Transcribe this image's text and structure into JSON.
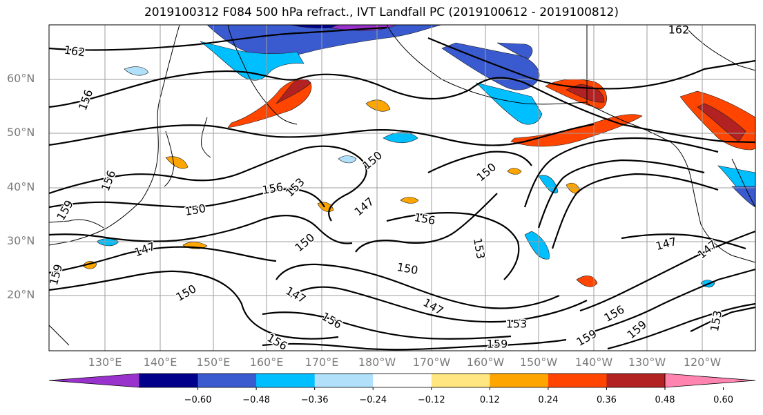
{
  "title": "2019100312 F084 500 hPa refract., IVT Landfall PC (2019100612 - 2019100812)",
  "lat_labels": [
    "60°N",
    "50°N",
    "40°N",
    "30°N",
    "20°N"
  ],
  "lon_labels": [
    "130°E",
    "140°E",
    "150°E",
    "160°E",
    "170°E",
    "180°W",
    "170°W",
    "160°W",
    "150°W",
    "140°W",
    "130°W",
    "120°W"
  ],
  "contour_labels": [
    "162",
    "162",
    "156",
    "159",
    "156",
    "156",
    "150",
    "153",
    "150",
    "147",
    "150",
    "156",
    "153",
    "150",
    "147",
    "150",
    "147",
    "156",
    "147",
    "156",
    "159",
    "156",
    "153",
    "159",
    "150",
    "147",
    "147",
    "159",
    "153",
    "159"
  ],
  "colorbar": {
    "tick_labels": [
      "−0.60",
      "−0.48",
      "−0.36",
      "−0.24",
      "−0.12",
      "0.12",
      "0.24",
      "0.36",
      "0.48",
      "0.60"
    ],
    "colors": [
      "#9932cc",
      "#00008b",
      "#3a5bcf",
      "#00bfff",
      "#b0e0fa",
      "#ffffff",
      "#ffe680",
      "#ffa500",
      "#ff4500",
      "#b22222",
      "#ff85b0"
    ]
  },
  "fill_colors": {
    "neg_light": "#b0e0fa",
    "neg_mid": "#00bfff",
    "neg_dark": "#3a5bcf",
    "neg_navy": "#00008b",
    "neg_purple": "#9932cc",
    "pos_yellow": "#ffe680",
    "pos_orange": "#ffa500",
    "pos_red": "#ff4500",
    "pos_dark": "#b22222"
  }
}
